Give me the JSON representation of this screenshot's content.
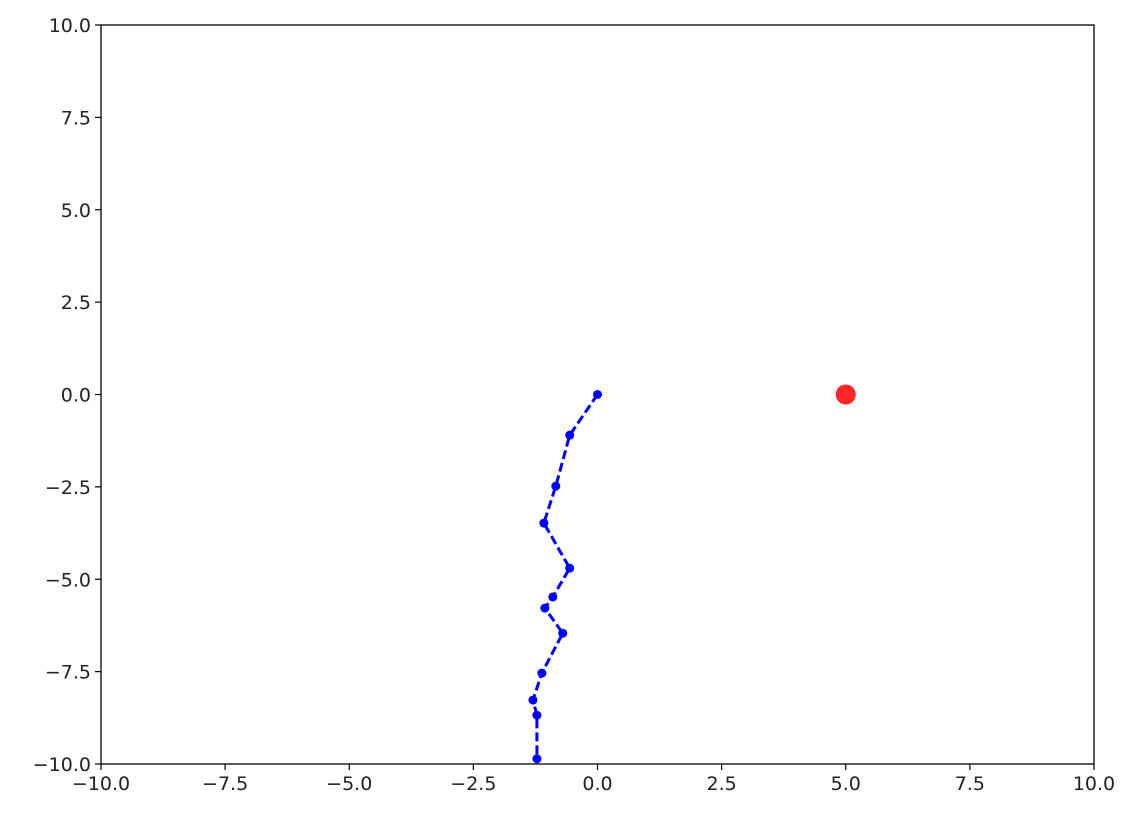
{
  "chart_data": {
    "type": "line",
    "title": "",
    "xlabel": "",
    "ylabel": "",
    "xlim": [
      -10,
      10
    ],
    "ylim": [
      -10,
      10
    ],
    "grid": false,
    "xticks": [
      "−10.0",
      "−7.5",
      "−5.0",
      "−2.5",
      "0.0",
      "2.5",
      "5.0",
      "7.5",
      "10.0"
    ],
    "yticks": [
      "−10.0",
      "−7.5",
      "−5.0",
      "−2.5",
      "0.0",
      "2.5",
      "5.0",
      "7.5",
      "10.0"
    ],
    "series": [
      {
        "style": "dashed line with dot markers",
        "color": "#0000ff",
        "x": [
          0.0,
          -0.56,
          -0.84,
          -1.08,
          -0.56,
          -0.9,
          -1.06,
          -0.7,
          -1.12,
          -1.3,
          -1.22,
          -1.22
        ],
        "y": [
          0.0,
          -1.1,
          -2.48,
          -3.48,
          -4.7,
          -5.48,
          -5.78,
          -6.46,
          -7.54,
          -8.27,
          -8.68,
          -9.86
        ]
      },
      {
        "style": "single marker",
        "color": "#ff0000",
        "x": [
          5.0
        ],
        "y": [
          0.0
        ]
      }
    ]
  }
}
